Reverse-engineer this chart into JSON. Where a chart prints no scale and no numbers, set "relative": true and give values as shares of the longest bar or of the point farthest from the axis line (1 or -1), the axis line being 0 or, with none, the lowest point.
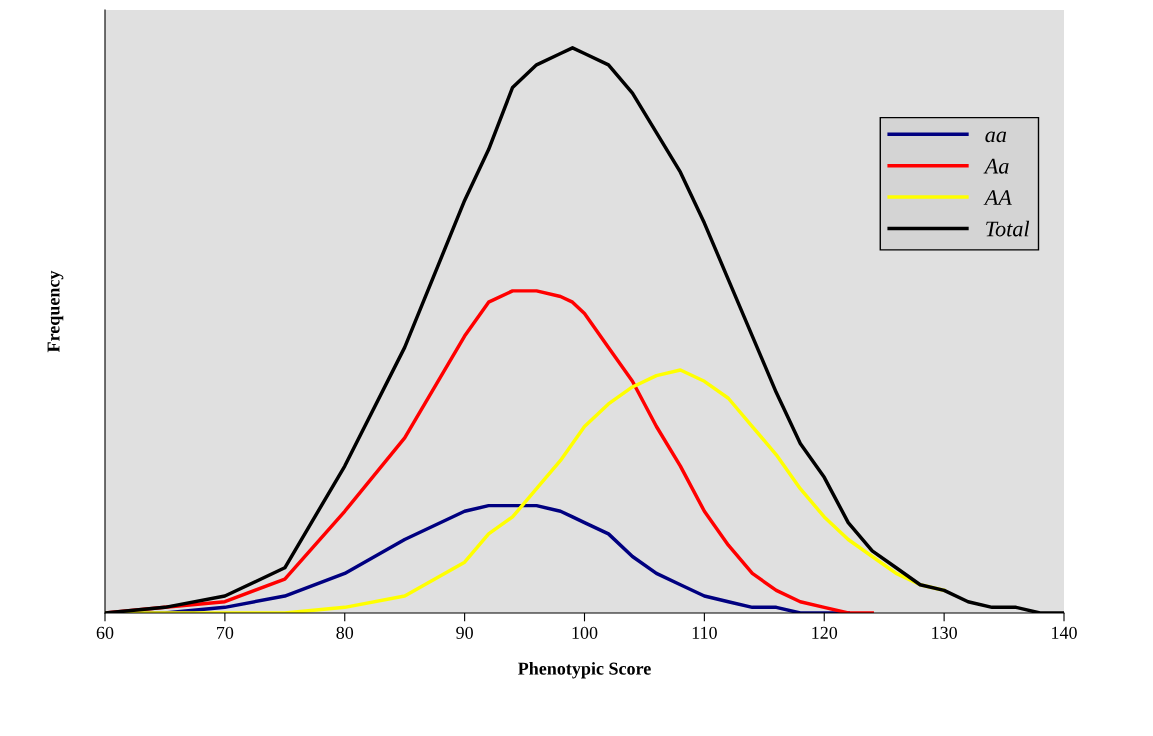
{
  "chart_data": {
    "type": "line",
    "relative": true,
    "xlabel": "Phenotypic Score",
    "ylabel": "Frequency",
    "x": [
      60,
      65,
      70,
      75,
      80,
      85,
      90,
      92,
      94,
      96,
      98,
      99,
      100,
      102,
      104,
      106,
      108,
      110,
      112,
      114,
      116,
      118,
      120,
      122,
      124,
      126,
      128,
      130,
      132,
      134,
      136,
      138,
      140
    ],
    "xlim": [
      60,
      140
    ],
    "xticks": [
      60,
      70,
      80,
      90,
      100,
      110,
      120,
      130,
      140
    ],
    "tick_labels": "x",
    "grid": false,
    "legend": "top right",
    "series": [
      {
        "name": "aa",
        "color": "#000080",
        "values": [
          0,
          0,
          0.01,
          0.03,
          0.07,
          0.13,
          0.18,
          0.19,
          0.19,
          0.19,
          0.18,
          0.17,
          0.16,
          0.14,
          0.1,
          0.07,
          0.05,
          0.03,
          0.02,
          0.01,
          0.01,
          0,
          0,
          0,
          null,
          null,
          null,
          null,
          null,
          null,
          null,
          null,
          null
        ]
      },
      {
        "name": "Aa",
        "color": "#ff0000",
        "values": [
          0,
          0.01,
          0.02,
          0.06,
          0.18,
          0.31,
          0.49,
          0.55,
          0.57,
          0.57,
          0.56,
          0.55,
          0.53,
          0.47,
          0.41,
          0.33,
          0.26,
          0.18,
          0.12,
          0.07,
          0.04,
          0.02,
          0.01,
          0,
          0,
          null,
          null,
          null,
          null,
          null,
          null,
          null,
          null
        ]
      },
      {
        "name": "AA",
        "color": "#ffff00",
        "values": [
          0,
          0,
          0,
          0,
          0.01,
          0.03,
          0.09,
          0.14,
          0.17,
          0.22,
          0.27,
          0.3,
          0.33,
          0.37,
          0.4,
          0.42,
          0.43,
          0.41,
          0.38,
          0.33,
          0.28,
          0.22,
          0.17,
          0.13,
          0.1,
          0.07,
          0.05,
          0.04,
          null,
          null,
          null,
          null,
          null
        ]
      },
      {
        "name": "Total",
        "color": "#000000",
        "values": [
          0,
          0.01,
          0.03,
          0.08,
          0.26,
          0.47,
          0.73,
          0.82,
          0.93,
          0.97,
          0.99,
          1.0,
          0.99,
          0.97,
          0.92,
          0.85,
          0.78,
          0.69,
          0.59,
          0.49,
          0.39,
          0.3,
          0.24,
          0.16,
          0.11,
          0.08,
          0.05,
          0.04,
          0.02,
          0.01,
          0.01,
          0,
          0
        ]
      }
    ]
  }
}
